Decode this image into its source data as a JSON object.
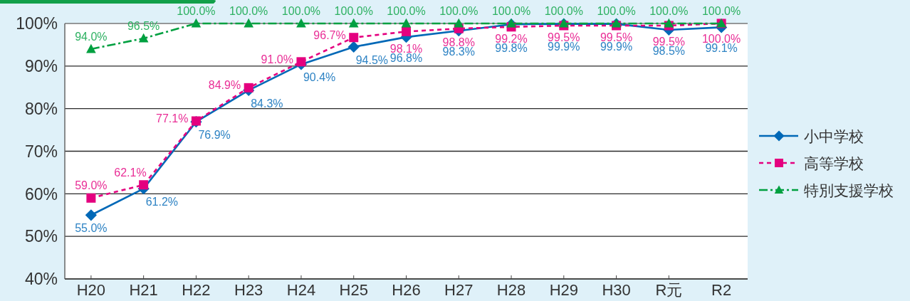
{
  "chart_data": {
    "type": "line",
    "categories": [
      "H20",
      "H21",
      "H22",
      "H23",
      "H24",
      "H25",
      "H26",
      "H27",
      "H28",
      "H29",
      "H30",
      "R元",
      "R2"
    ],
    "series": [
      {
        "name": "小中学校",
        "color": "#0068b7",
        "marker": "diamond",
        "line_style": "solid",
        "values": [
          55.0,
          61.2,
          76.9,
          84.3,
          90.4,
          94.5,
          96.8,
          98.3,
          99.8,
          99.9,
          99.9,
          98.5,
          99.1
        ],
        "value_labels": [
          "55.0%",
          "61.2%",
          "76.9%",
          "84.3%",
          "90.4%",
          "94.5%",
          "96.8%",
          "98.3%",
          "99.8%",
          "99.9%",
          "99.9%",
          "98.5%",
          "99.1%"
        ]
      },
      {
        "name": "高等学校",
        "color": "#e4007f",
        "marker": "square",
        "line_style": "dashed",
        "values": [
          59.0,
          62.1,
          77.1,
          84.9,
          91.0,
          96.7,
          98.1,
          98.8,
          99.2,
          99.5,
          99.5,
          99.5,
          100.0
        ],
        "value_labels": [
          "59.0%",
          "62.1%",
          "77.1%",
          "84.9%",
          "91.0%",
          "96.7%",
          "98.1%",
          "98.8%",
          "99.2%",
          "99.5%",
          "99.5%",
          "99.5%",
          "100.0%"
        ]
      },
      {
        "name": "特別支援学校",
        "color": "#00a040",
        "marker": "triangle",
        "line_style": "dashdot",
        "values": [
          94.0,
          96.5,
          100.0,
          100.0,
          100.0,
          100.0,
          100.0,
          100.0,
          100.0,
          100.0,
          100.0,
          100.0,
          100.0
        ],
        "value_labels": [
          "94.0%",
          "96.5%",
          "100.0%",
          "100.0%",
          "100.0%",
          "100.0%",
          "100.0%",
          "100.0%",
          "100.0%",
          "100.0%",
          "100.0%",
          "100.0%",
          "100.0%"
        ]
      }
    ],
    "ylim": [
      40,
      100
    ],
    "yticks": [
      {
        "value": 40,
        "label": "40%"
      },
      {
        "value": 50,
        "label": "50%"
      },
      {
        "value": 60,
        "label": "60%"
      },
      {
        "value": 70,
        "label": "70%"
      },
      {
        "value": 80,
        "label": "80%"
      },
      {
        "value": 90,
        "label": "90%"
      },
      {
        "value": 100,
        "label": "100%"
      }
    ],
    "grid": "y",
    "legend": "right"
  }
}
